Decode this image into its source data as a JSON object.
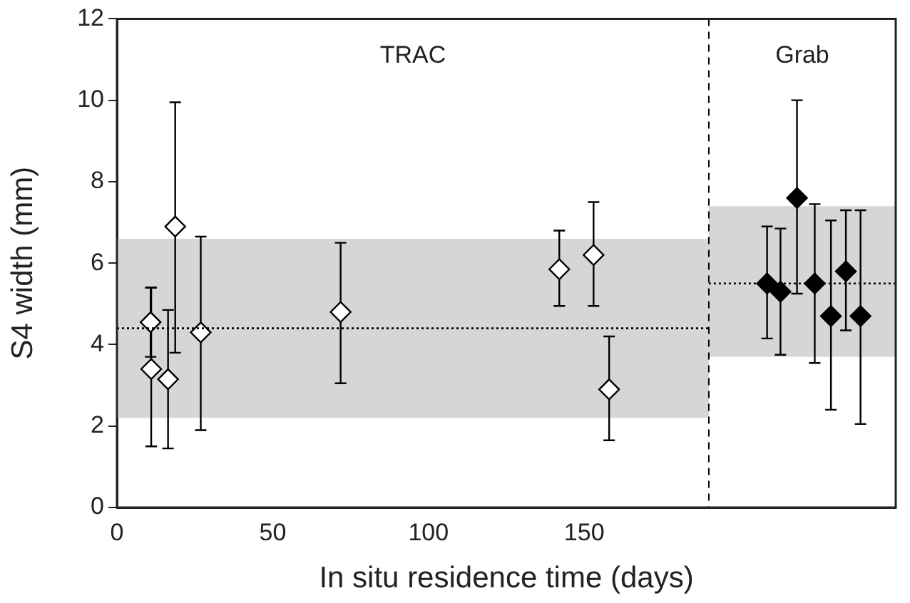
{
  "chart_data": {
    "type": "scatter",
    "xlabel": "In situ residence time (days)",
    "ylabel": "S4 width (mm)",
    "xlim": [
      0,
      250
    ],
    "xticks": [
      0,
      50,
      100,
      150
    ],
    "ylim": [
      0,
      12
    ],
    "yticks": [
      0,
      2,
      4,
      6,
      8,
      10,
      12
    ],
    "grid": false,
    "legend": false,
    "marker": "diamond",
    "series": [
      {
        "type": "line",
        "color": "#000000",
        "line_style": "dotted",
        "marker": "none",
        "x": [
          0,
          190
        ],
        "values": [
          4.4,
          4.4
        ],
        "lower": [
          2.2,
          2.2
        ],
        "upper": [
          6.6,
          6.6
        ]
      },
      {
        "type": "line",
        "color": "#000000",
        "line_style": "dotted",
        "marker": "none",
        "x": [
          190,
          250
        ],
        "values": [
          5.5,
          5.5
        ],
        "lower": [
          3.7,
          3.7
        ],
        "upper": [
          7.4,
          7.4
        ]
      },
      {
        "color": "#ffffff",
        "x": [
          10.8,
          11,
          16.4,
          18.7,
          26.9,
          71.8,
          142,
          153,
          158
        ],
        "values": [
          4.55,
          3.4,
          3.15,
          6.9,
          4.3,
          4.8,
          5.85,
          6.2,
          2.9
        ],
        "errors": [
          [
            3.7,
            5.4
          ],
          [
            1.5,
            5.4
          ],
          [
            1.45,
            4.85
          ],
          [
            3.8,
            9.95
          ],
          [
            1.9,
            6.65
          ],
          [
            3.05,
            6.5
          ],
          [
            4.95,
            6.8
          ],
          [
            4.95,
            7.5
          ],
          [
            1.65,
            4.2
          ]
        ]
      },
      {
        "color": "#000000",
        "x": [
          208.7,
          213,
          218.3,
          224,
          229.2,
          234,
          238.7
        ],
        "values": [
          5.5,
          5.3,
          7.6,
          5.5,
          4.7,
          5.8,
          4.7
        ],
        "errors": [
          [
            4.15,
            6.9
          ],
          [
            3.75,
            6.85
          ],
          [
            5.25,
            10
          ],
          [
            3.55,
            7.45
          ],
          [
            2.4,
            7.05
          ],
          [
            4.35,
            7.3
          ],
          [
            2.05,
            7.3
          ]
        ]
      }
    ],
    "ref_lines": [
      {
        "axis": "x",
        "value": 190,
        "color": "#000000",
        "line_style": "dashed"
      }
    ],
    "annotations": [
      "TRAC",
      "Grab"
    ]
  }
}
